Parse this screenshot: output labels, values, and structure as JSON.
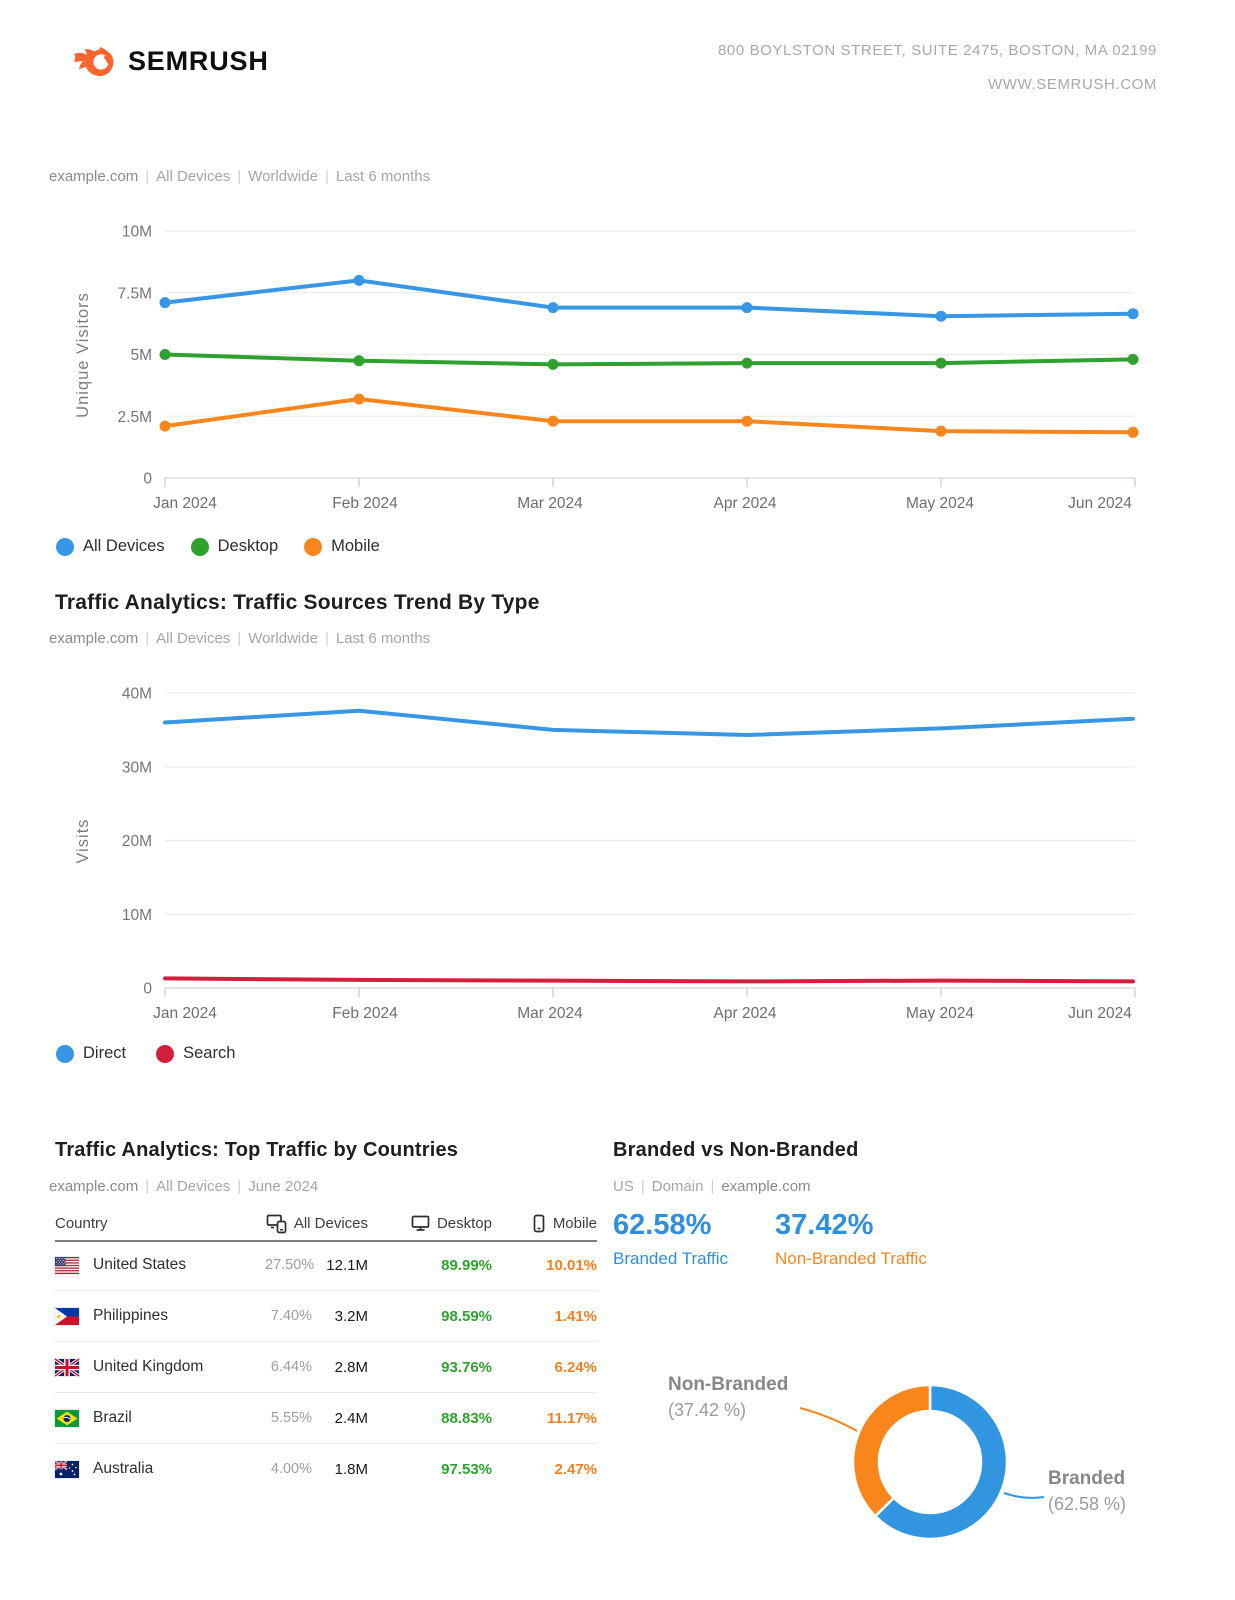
{
  "colors": {
    "blue": "#3797E4",
    "green": "#2FA12F",
    "orange": "#F8861D",
    "red": "#D2203C",
    "donut_blue": "#3295E0",
    "donut_orange": "#F8861B",
    "stat_blue": "#2E8FE0",
    "stat_orange": "#F8861B",
    "table_green": "#2CA42C",
    "table_orange": "#F57F1E",
    "logo_orange": "#FF642D"
  },
  "header": {
    "logo_text": "SEMRUSH",
    "address_line1": "800 BOYLSTON STREET, SUITE 2475, BOSTON, MA 02199",
    "address_line2": "WWW.SEMRUSH.COM"
  },
  "sections": {
    "visitors": {
      "subtitle_parts": [
        {
          "text": "example.com",
          "dark": true
        },
        {
          "text": "All Devices",
          "dark": false
        },
        {
          "text": "Worldwide",
          "dark": false
        },
        {
          "text": "Last 6 months",
          "dark": false
        }
      ]
    },
    "sources": {
      "title": "Traffic Analytics: Traffic Sources Trend By Type",
      "subtitle_parts": [
        {
          "text": "example.com",
          "dark": true
        },
        {
          "text": "All Devices",
          "dark": false
        },
        {
          "text": "Worldwide",
          "dark": false
        },
        {
          "text": "Last 6 months",
          "dark": false
        }
      ]
    },
    "countries": {
      "title": "Traffic Analytics: Top Traffic by Countries",
      "subtitle_parts": [
        {
          "text": "example.com",
          "dark": true
        },
        {
          "text": "All Devices",
          "dark": false
        },
        {
          "text": "June 2024",
          "dark": false
        }
      ],
      "table": {
        "headers": {
          "country": "Country",
          "all_devices": "All Devices",
          "desktop": "Desktop",
          "mobile": "Mobile"
        },
        "rows": [
          {
            "country": "United States",
            "flag": "us",
            "all_pct": "27.50%",
            "value": "12.1M",
            "desktop": "89.99%",
            "mobile": "10.01%"
          },
          {
            "country": "Philippines",
            "flag": "ph",
            "all_pct": "7.40%",
            "value": "3.2M",
            "desktop": "98.59%",
            "mobile": "1.41%"
          },
          {
            "country": "United Kingdom",
            "flag": "gb",
            "all_pct": "6.44%",
            "value": "2.8M",
            "desktop": "93.76%",
            "mobile": "6.24%"
          },
          {
            "country": "Brazil",
            "flag": "br",
            "all_pct": "5.55%",
            "value": "2.4M",
            "desktop": "88.83%",
            "mobile": "11.17%"
          },
          {
            "country": "Australia",
            "flag": "au",
            "all_pct": "4.00%",
            "value": "1.8M",
            "desktop": "97.53%",
            "mobile": "2.47%"
          }
        ]
      }
    },
    "branded": {
      "title": "Branded vs Non-Branded",
      "subtitle_parts": [
        {
          "text": "US",
          "dark": false
        },
        {
          "text": "Domain",
          "dark": false
        },
        {
          "text": "example.com",
          "dark": true
        }
      ],
      "stats": [
        {
          "value": "62.58%",
          "label": "Branded Traffic"
        },
        {
          "value": "37.42%",
          "label": "Non-Branded Traffic"
        }
      ],
      "callouts": {
        "non_branded": {
          "title": "Non-Branded",
          "sub": "(37.42 %)"
        },
        "branded": {
          "title": "Branded",
          "sub": "(62.58 %)"
        }
      }
    }
  },
  "chart_data": [
    {
      "type": "line",
      "title": "",
      "ylabel": "Unique Visitors",
      "x": [
        "Jan 2024",
        "Feb 2024",
        "Mar 2024",
        "Apr 2024",
        "May 2024",
        "Jun 2024"
      ],
      "ylim": [
        0,
        10000000
      ],
      "yticks": [
        0,
        2500000,
        5000000,
        7500000,
        10000000
      ],
      "ytick_labels": [
        "0",
        "2.5M",
        "5M",
        "7.5M",
        "10M"
      ],
      "grid": true,
      "legend_position": "bottom",
      "series": [
        {
          "name": "All Devices",
          "color": "#3797E4",
          "markers": true,
          "values": [
            7100000,
            8000000,
            6900000,
            6900000,
            6550000,
            6650000
          ]
        },
        {
          "name": "Desktop",
          "color": "#2FA12F",
          "markers": true,
          "values": [
            5000000,
            4750000,
            4600000,
            4650000,
            4650000,
            4800000
          ]
        },
        {
          "name": "Mobile",
          "color": "#F8861D",
          "markers": true,
          "values": [
            2100000,
            3200000,
            2300000,
            2300000,
            1900000,
            1850000
          ]
        }
      ]
    },
    {
      "type": "line",
      "title": "Traffic Analytics: Traffic Sources Trend By Type",
      "ylabel": "Visits",
      "x": [
        "Jan 2024",
        "Feb 2024",
        "Mar 2024",
        "Apr 2024",
        "May 2024",
        "Jun 2024"
      ],
      "ylim": [
        0,
        40000000
      ],
      "yticks": [
        0,
        10000000,
        20000000,
        30000000,
        40000000
      ],
      "ytick_labels": [
        "0",
        "10M",
        "20M",
        "30M",
        "40M"
      ],
      "grid": true,
      "legend_position": "bottom",
      "series": [
        {
          "name": "Direct",
          "color": "#3797E4",
          "markers": false,
          "values": [
            36000000,
            37600000,
            35000000,
            34300000,
            35200000,
            36500000
          ]
        },
        {
          "name": "Search",
          "color": "#D2203C",
          "markers": false,
          "values": [
            1300000,
            1100000,
            1000000,
            900000,
            1000000,
            900000
          ]
        }
      ]
    },
    {
      "type": "pie",
      "title": "Branded vs Non-Branded",
      "donut": true,
      "slices": [
        {
          "label": "Branded",
          "value": 62.58,
          "color": "#3295E0"
        },
        {
          "label": "Non-Branded",
          "value": 37.42,
          "color": "#F8861B"
        }
      ]
    }
  ]
}
